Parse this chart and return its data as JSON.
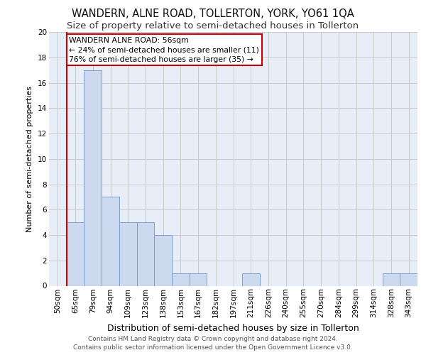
{
  "title": "WANDERN, ALNE ROAD, TOLLERTON, YORK, YO61 1QA",
  "subtitle": "Size of property relative to semi-detached houses in Tollerton",
  "xlabel": "Distribution of semi-detached houses by size in Tollerton",
  "ylabel": "Number of semi-detached properties",
  "categories": [
    "50sqm",
    "65sqm",
    "79sqm",
    "94sqm",
    "109sqm",
    "123sqm",
    "138sqm",
    "153sqm",
    "167sqm",
    "182sqm",
    "197sqm",
    "211sqm",
    "226sqm",
    "240sqm",
    "255sqm",
    "270sqm",
    "284sqm",
    "299sqm",
    "314sqm",
    "328sqm",
    "343sqm"
  ],
  "values": [
    0,
    5,
    17,
    7,
    5,
    5,
    4,
    1,
    1,
    0,
    0,
    1,
    0,
    0,
    0,
    0,
    0,
    0,
    0,
    1,
    1
  ],
  "bar_color": "#cdd9ee",
  "bar_edge_color": "#7a9fd4",
  "marker_line_index": 1,
  "annotation_title": "WANDERN ALNE ROAD: 56sqm",
  "annotation_line1": "← 24% of semi-detached houses are smaller (11)",
  "annotation_line2": "76% of semi-detached houses are larger (35) →",
  "annotation_box_color": "#ffffff",
  "annotation_box_edge": "#cc0000",
  "marker_line_color": "#cc0000",
  "ylim": [
    0,
    20
  ],
  "yticks": [
    0,
    2,
    4,
    6,
    8,
    10,
    12,
    14,
    16,
    18,
    20
  ],
  "footer_line1": "Contains HM Land Registry data © Crown copyright and database right 2024.",
  "footer_line2": "Contains public sector information licensed under the Open Government Licence v3.0.",
  "bg_color": "#e8eef8",
  "title_fontsize": 10.5,
  "subtitle_fontsize": 9.5,
  "footer_fontsize": 6.5,
  "ylabel_fontsize": 8,
  "xlabel_fontsize": 9,
  "tick_fontsize": 7.5,
  "annotation_fontsize": 7.8
}
